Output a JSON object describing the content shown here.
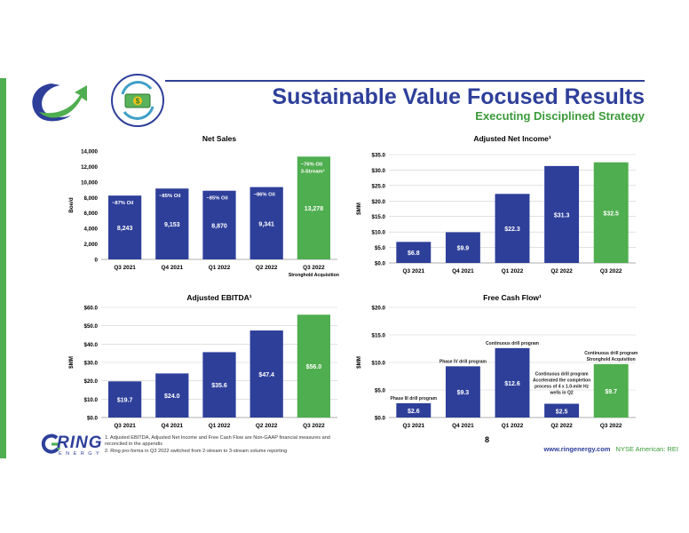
{
  "header": {
    "title": "Sustainable Value Focused Results",
    "subtitle": "Executing Disciplined Strategy"
  },
  "brand": {
    "name": "RING",
    "sub": "ENERGY"
  },
  "footer": {
    "page_number": "8",
    "url": "www.ringenergy.com",
    "ticker": "NYSE American: REI",
    "notes": [
      "1.   Adjusted EBITDA, Adjusted Net Income and Free Cash Flow are Non-GAAP financial measures and",
      "      reconciled in the appendix",
      "2.   Ring pro-forma in Q3 2022 switched from 2-stream to 3-stream volume reporting"
    ]
  },
  "colors": {
    "blue": "#2e3f9a",
    "green": "#5ab25a",
    "bar_blue": "#2e3f9a",
    "bar_green": "#4fae4f"
  },
  "chart_data": [
    {
      "id": "net-sales",
      "type": "bar",
      "title": "Net Sales",
      "ylabel": "Boe/d",
      "ylim": [
        0,
        14000
      ],
      "yticks": [
        "0",
        "2,000",
        "4,000",
        "6,000",
        "8,000",
        "10,000",
        "12,000",
        "14,000"
      ],
      "categories": [
        "Q3 2021",
        "Q4 2021",
        "Q1 2022",
        "Q2 2022",
        "Q3 2022"
      ],
      "category_sublabels": [
        "",
        "",
        "",
        "",
        "Stronghold Acquisition"
      ],
      "values": [
        8243,
        9153,
        8870,
        9341,
        13278
      ],
      "value_labels": [
        "8,243",
        "9,153",
        "8,870",
        "9,341",
        "13,278"
      ],
      "bar_notes": [
        "~87% Oil",
        "~85% Oil",
        "~85% Oil",
        "~86% Oil",
        "~76% Oil 3-Stream²"
      ],
      "highlight": [
        false,
        false,
        false,
        false,
        true
      ]
    },
    {
      "id": "adjusted-net-income",
      "type": "bar",
      "title": "Adjusted Net Income¹",
      "ylabel": "$MM",
      "ylim": [
        0,
        35
      ],
      "yticks": [
        "$0.0",
        "$5.0",
        "$10.0",
        "$15.0",
        "$20.0",
        "$25.0",
        "$30.0",
        "$35.0"
      ],
      "categories": [
        "Q3 2021",
        "Q4 2021",
        "Q1 2022",
        "Q2 2022",
        "Q3 2022"
      ],
      "values": [
        6.8,
        9.9,
        22.3,
        31.3,
        32.5
      ],
      "value_labels": [
        "$6.8",
        "$9.9",
        "$22.3",
        "$31.3",
        "$32.5"
      ],
      "highlight": [
        false,
        false,
        false,
        false,
        true
      ]
    },
    {
      "id": "adjusted-ebitda",
      "type": "bar",
      "title": "Adjusted EBITDA¹",
      "ylabel": "$MM",
      "ylim": [
        0,
        60
      ],
      "yticks": [
        "$0.0",
        "$10.0",
        "$20.0",
        "$30.0",
        "$40.0",
        "$50.0",
        "$60.0"
      ],
      "categories": [
        "Q3 2021",
        "Q4 2021",
        "Q1 2022",
        "Q2 2022",
        "Q3 2022"
      ],
      "values": [
        19.7,
        24.0,
        35.6,
        47.4,
        56.0
      ],
      "value_labels": [
        "$19.7",
        "$24.0",
        "$35.6",
        "$47.4",
        "$56.0"
      ],
      "highlight": [
        false,
        false,
        false,
        false,
        true
      ]
    },
    {
      "id": "free-cash-flow",
      "type": "bar",
      "title": "Free Cash Flow¹",
      "ylabel": "$MM",
      "ylim": [
        0,
        20
      ],
      "yticks": [
        "$0.0",
        "$5.0",
        "$10.0",
        "$15.0",
        "$20.0"
      ],
      "categories": [
        "Q3 2021",
        "Q4 2021",
        "Q1 2022",
        "Q2 2022",
        "Q3 2022"
      ],
      "values": [
        2.6,
        9.3,
        12.6,
        2.5,
        9.7
      ],
      "value_labels": [
        "$2.6",
        "$9.3",
        "$12.6",
        "$2.5",
        "$9.7"
      ],
      "annotations": [
        "Phase III drill program",
        "Phase IV drill program",
        "Continuous drill program",
        "Continuous drill program Accelerated the completion process of 4 x 1.0-mile Hz wells in Q2",
        "Continuous drill program Stronghold Acquisition"
      ],
      "highlight": [
        false,
        false,
        false,
        false,
        true
      ]
    }
  ]
}
